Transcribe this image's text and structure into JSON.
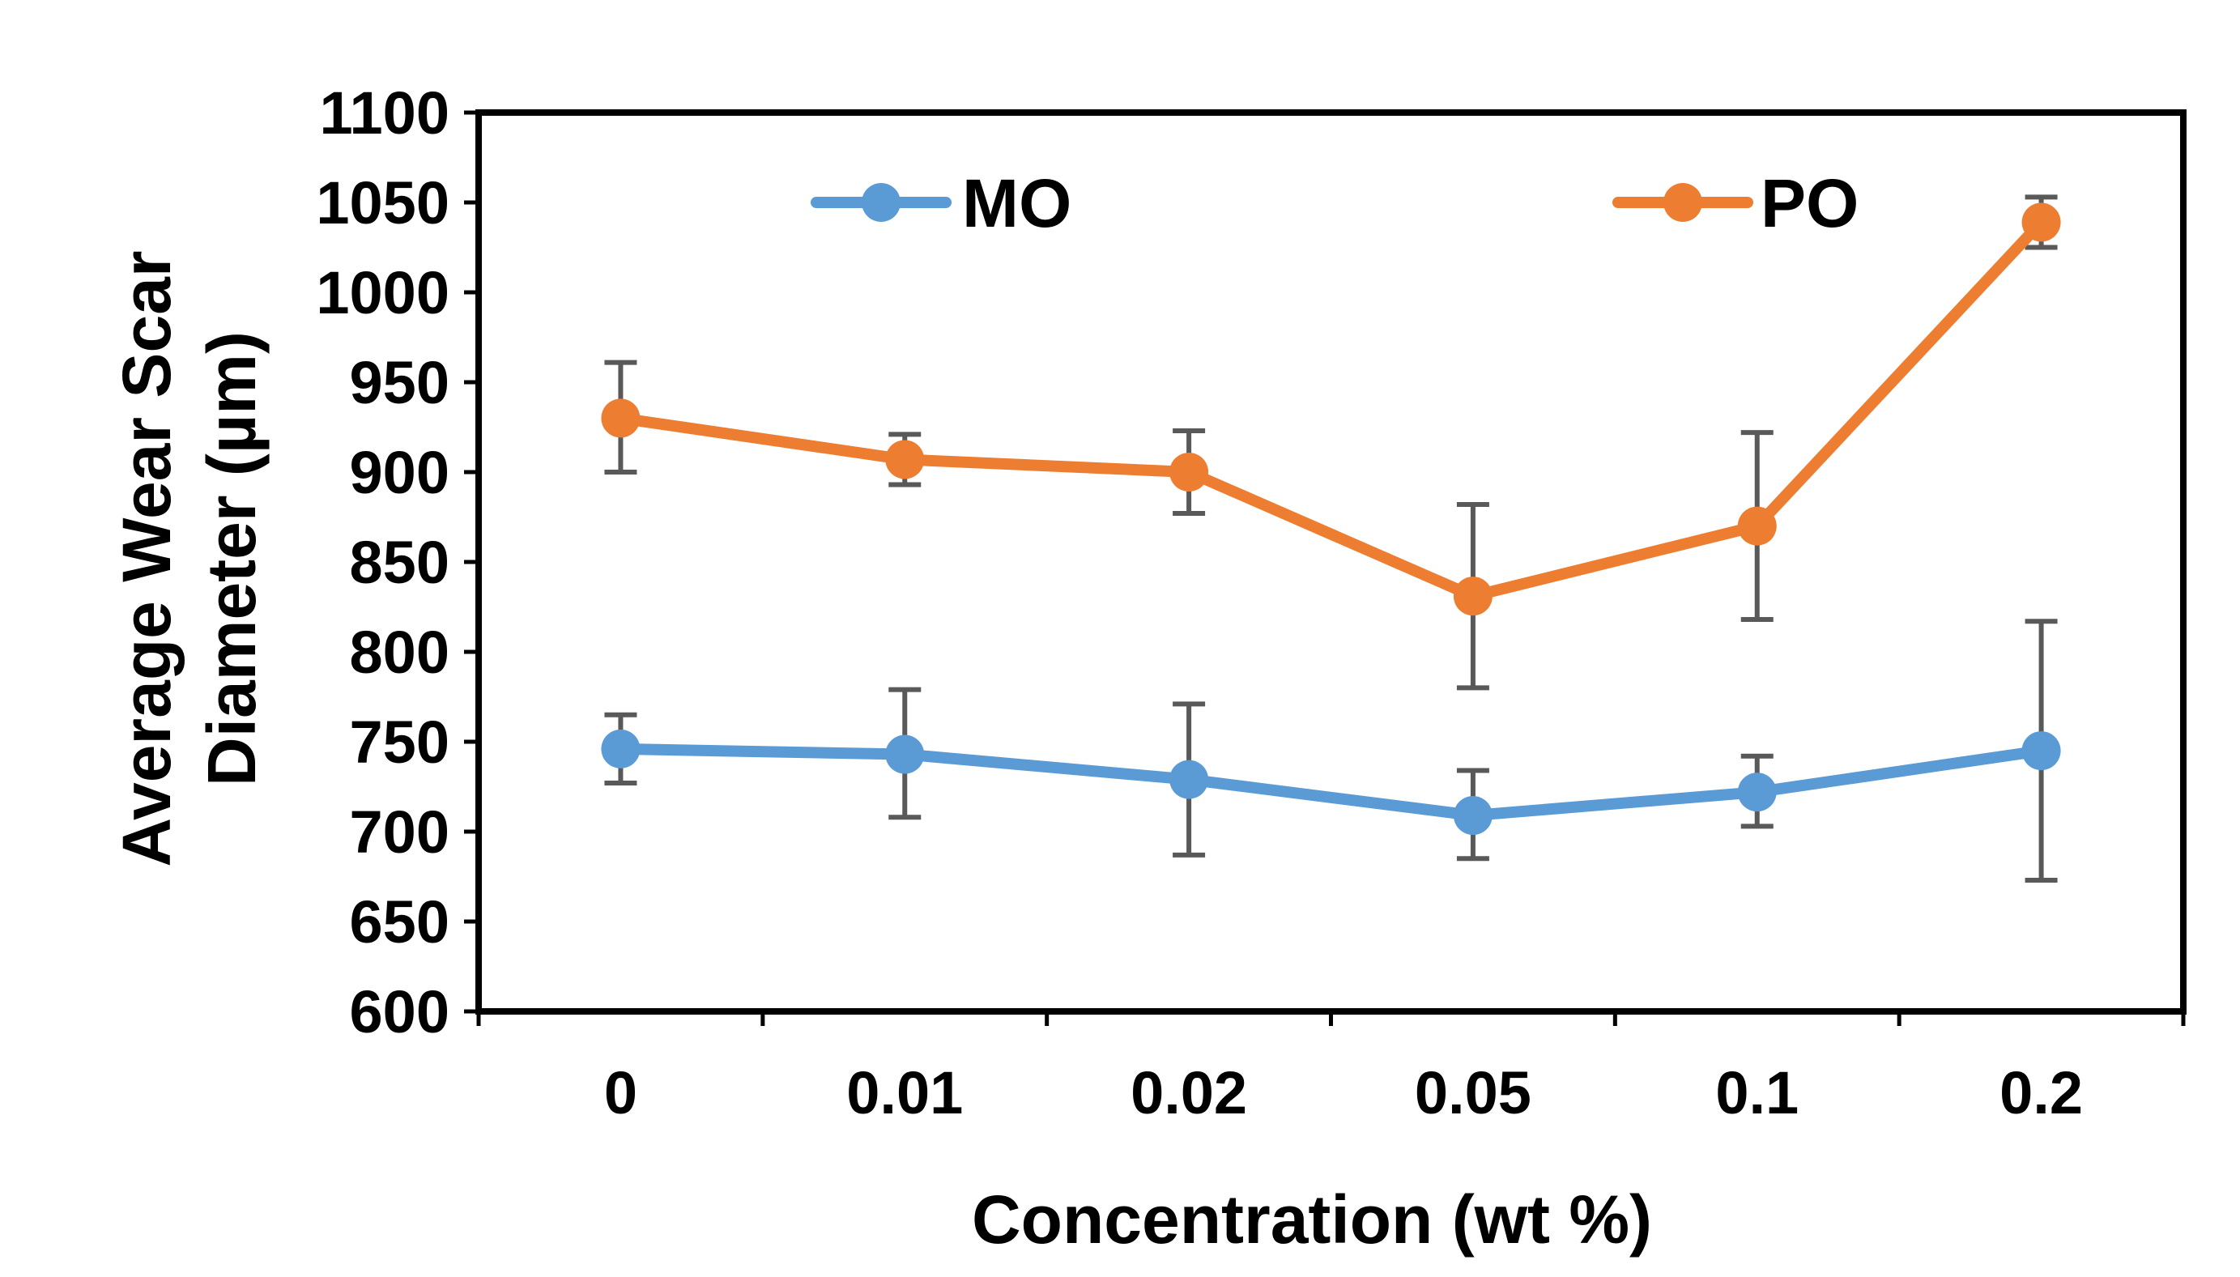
{
  "chart_data": {
    "type": "line",
    "categories": [
      "0",
      "0.01",
      "0.02",
      "0.05",
      "0.1",
      "0.2"
    ],
    "xlabel": "Concentration (wt %)",
    "ylabel_lines": [
      "Average Wear Scar",
      "Diameter (µm)"
    ],
    "ylim": [
      600,
      1100
    ],
    "yticks": [
      600,
      650,
      700,
      750,
      800,
      850,
      900,
      950,
      1000,
      1050,
      1100
    ],
    "legend_placement": "top, inside plot",
    "series": [
      {
        "name": "MO",
        "color": "#5B9BD5",
        "values": [
          746,
          743,
          729,
          709,
          722,
          745
        ],
        "err_low": [
          727,
          708,
          687,
          685,
          703,
          673
        ],
        "err_high": [
          765,
          779,
          771,
          734,
          742,
          817
        ]
      },
      {
        "name": "PO",
        "color": "#ED7D31",
        "values": [
          930,
          907,
          900,
          831,
          870,
          1039
        ],
        "err_low": [
          900,
          893,
          877,
          780,
          818,
          1025
        ],
        "err_high": [
          961,
          921,
          923,
          882,
          922,
          1053
        ]
      }
    ],
    "errorbar_color": "#595959"
  }
}
